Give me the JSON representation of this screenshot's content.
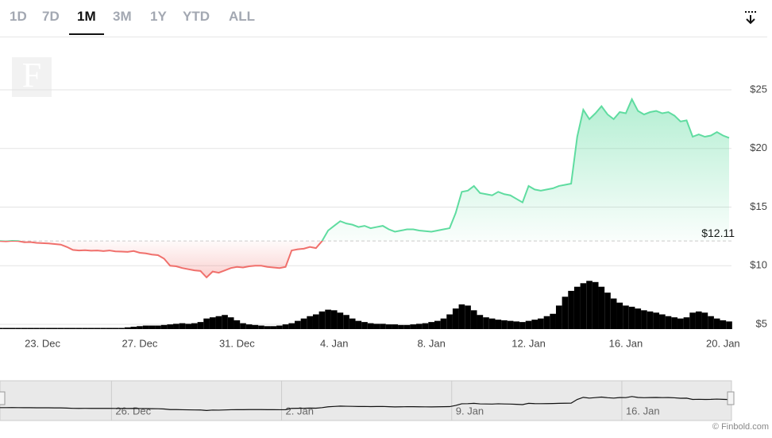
{
  "ranges": [
    "1D",
    "7D",
    "1M",
    "3M",
    "1Y",
    "YTD",
    "ALL"
  ],
  "active_range": 2,
  "chart_data": {
    "type": "line",
    "categories": [
      null,
      null,
      null,
      null,
      null,
      null,
      null,
      "23. Dec",
      null,
      null,
      null,
      null,
      null,
      null,
      null,
      null,
      null,
      null,
      null,
      null,
      null,
      null,
      null,
      "27. Dec",
      null,
      null,
      null,
      null,
      null,
      null,
      null,
      null,
      null,
      null,
      null,
      null,
      null,
      null,
      null,
      "31. Dec",
      null,
      null,
      null,
      null,
      null,
      null,
      null,
      null,
      null,
      null,
      null,
      null,
      null,
      null,
      null,
      "4. Jan",
      null,
      null,
      null,
      null,
      null,
      null,
      null,
      null,
      null,
      null,
      null,
      null,
      null,
      null,
      null,
      "8. Jan",
      null,
      null,
      null,
      null,
      null,
      null,
      null,
      null,
      null,
      null,
      null,
      null,
      null,
      null,
      null,
      "12. Jan",
      null,
      null,
      null,
      null,
      null,
      null,
      null,
      null,
      null,
      null,
      null,
      null,
      null,
      null,
      null,
      "16. Jan",
      null,
      null,
      null,
      null,
      null,
      null,
      null,
      null,
      null,
      null,
      null,
      null,
      null,
      null,
      null,
      "20. Jan",
      null
    ],
    "values": [
      12.1,
      12.08,
      12.12,
      12.1,
      12.0,
      12.02,
      11.95,
      11.92,
      11.9,
      11.85,
      11.8,
      11.6,
      11.35,
      11.3,
      11.32,
      11.28,
      11.3,
      11.25,
      11.3,
      11.22,
      11.2,
      11.18,
      11.25,
      11.1,
      11.05,
      10.95,
      10.9,
      10.6,
      10.0,
      9.95,
      9.8,
      9.7,
      9.6,
      9.55,
      9.0,
      9.5,
      9.4,
      9.6,
      9.8,
      9.9,
      9.85,
      9.95,
      10.0,
      10.0,
      9.9,
      9.85,
      9.8,
      9.9,
      11.3,
      11.4,
      11.45,
      11.6,
      11.5,
      12.1,
      13.0,
      13.4,
      13.8,
      13.6,
      13.5,
      13.3,
      13.4,
      13.2,
      13.3,
      13.4,
      13.1,
      12.9,
      13.0,
      13.1,
      13.1,
      13.0,
      12.95,
      12.9,
      13.0,
      13.1,
      13.2,
      14.5,
      16.3,
      16.4,
      16.8,
      16.2,
      16.1,
      16.0,
      16.3,
      16.1,
      16.0,
      15.7,
      15.4,
      16.8,
      16.5,
      16.4,
      16.5,
      16.6,
      16.8,
      16.9,
      17.0,
      21.0,
      23.3,
      22.5,
      23.0,
      23.6,
      22.9,
      22.5,
      23.1,
      23.0,
      24.2,
      23.2,
      22.9,
      23.1,
      23.2,
      23.0,
      23.1,
      22.8,
      22.3,
      22.4,
      21.0,
      21.2,
      21.0,
      21.1,
      21.4,
      21.1,
      20.9
    ],
    "up_color": "#5fdca0",
    "down_color": "#f0706c",
    "baseline": 12.11,
    "baseline_label": "$12.11",
    "ylim": [
      5,
      25
    ],
    "yticks": [
      {
        "value": 5,
        "label": "$5"
      },
      {
        "value": 10,
        "label": "$10"
      },
      {
        "value": 15,
        "label": "$15"
      },
      {
        "value": 20,
        "label": "$20"
      },
      {
        "value": 25,
        "label": "$25"
      }
    ],
    "grid": true,
    "volume": {
      "color": "#000000",
      "ylim": [
        0,
        100
      ],
      "values": [
        2,
        2,
        2,
        2,
        2,
        2,
        2,
        2,
        2,
        2,
        2,
        2,
        2,
        2,
        2,
        2,
        2,
        2,
        2,
        2,
        2,
        3,
        4,
        5,
        6,
        6,
        6,
        7,
        8,
        9,
        10,
        9,
        10,
        12,
        18,
        20,
        22,
        24,
        20,
        15,
        10,
        8,
        7,
        6,
        5,
        5,
        6,
        8,
        10,
        14,
        18,
        22,
        25,
        30,
        33,
        32,
        28,
        24,
        18,
        14,
        12,
        10,
        9,
        9,
        8,
        8,
        7,
        7,
        8,
        9,
        10,
        12,
        14,
        18,
        25,
        35,
        42,
        40,
        32,
        24,
        20,
        18,
        16,
        15,
        14,
        13,
        12,
        14,
        16,
        18,
        22,
        26,
        40,
        55,
        65,
        72,
        78,
        82,
        80,
        72,
        62,
        52,
        45,
        40,
        38,
        35,
        32,
        30,
        28,
        25,
        22,
        20,
        18,
        20,
        28,
        30,
        28,
        22,
        18,
        15,
        13
      ]
    },
    "navigator_categories": [
      null,
      null,
      null,
      null,
      null,
      null,
      null,
      null,
      null,
      null,
      null,
      null,
      null,
      null,
      null,
      null,
      null,
      null,
      null,
      "26. Dec",
      null,
      null,
      null,
      null,
      null,
      null,
      null,
      null,
      null,
      null,
      null,
      null,
      null,
      null,
      null,
      null,
      null,
      null,
      null,
      null,
      null,
      null,
      null,
      null,
      null,
      null,
      null,
      "2. Jan",
      null,
      null,
      null,
      null,
      null,
      null,
      null,
      null,
      null,
      null,
      null,
      null,
      null,
      null,
      null,
      null,
      null,
      null,
      null,
      null,
      null,
      null,
      null,
      null,
      null,
      null,
      null,
      "9. Jan",
      null,
      null,
      null,
      null,
      null,
      null,
      null,
      null,
      null,
      null,
      null,
      null,
      null,
      null,
      null,
      null,
      null,
      null,
      null,
      null,
      null,
      null,
      null,
      null,
      null,
      null,
      null,
      "16. Jan",
      null,
      null,
      null,
      null,
      null,
      null,
      null,
      null,
      null,
      null,
      null,
      null,
      null,
      null,
      null,
      null,
      null
    ]
  },
  "credit": "© Finbold.com"
}
